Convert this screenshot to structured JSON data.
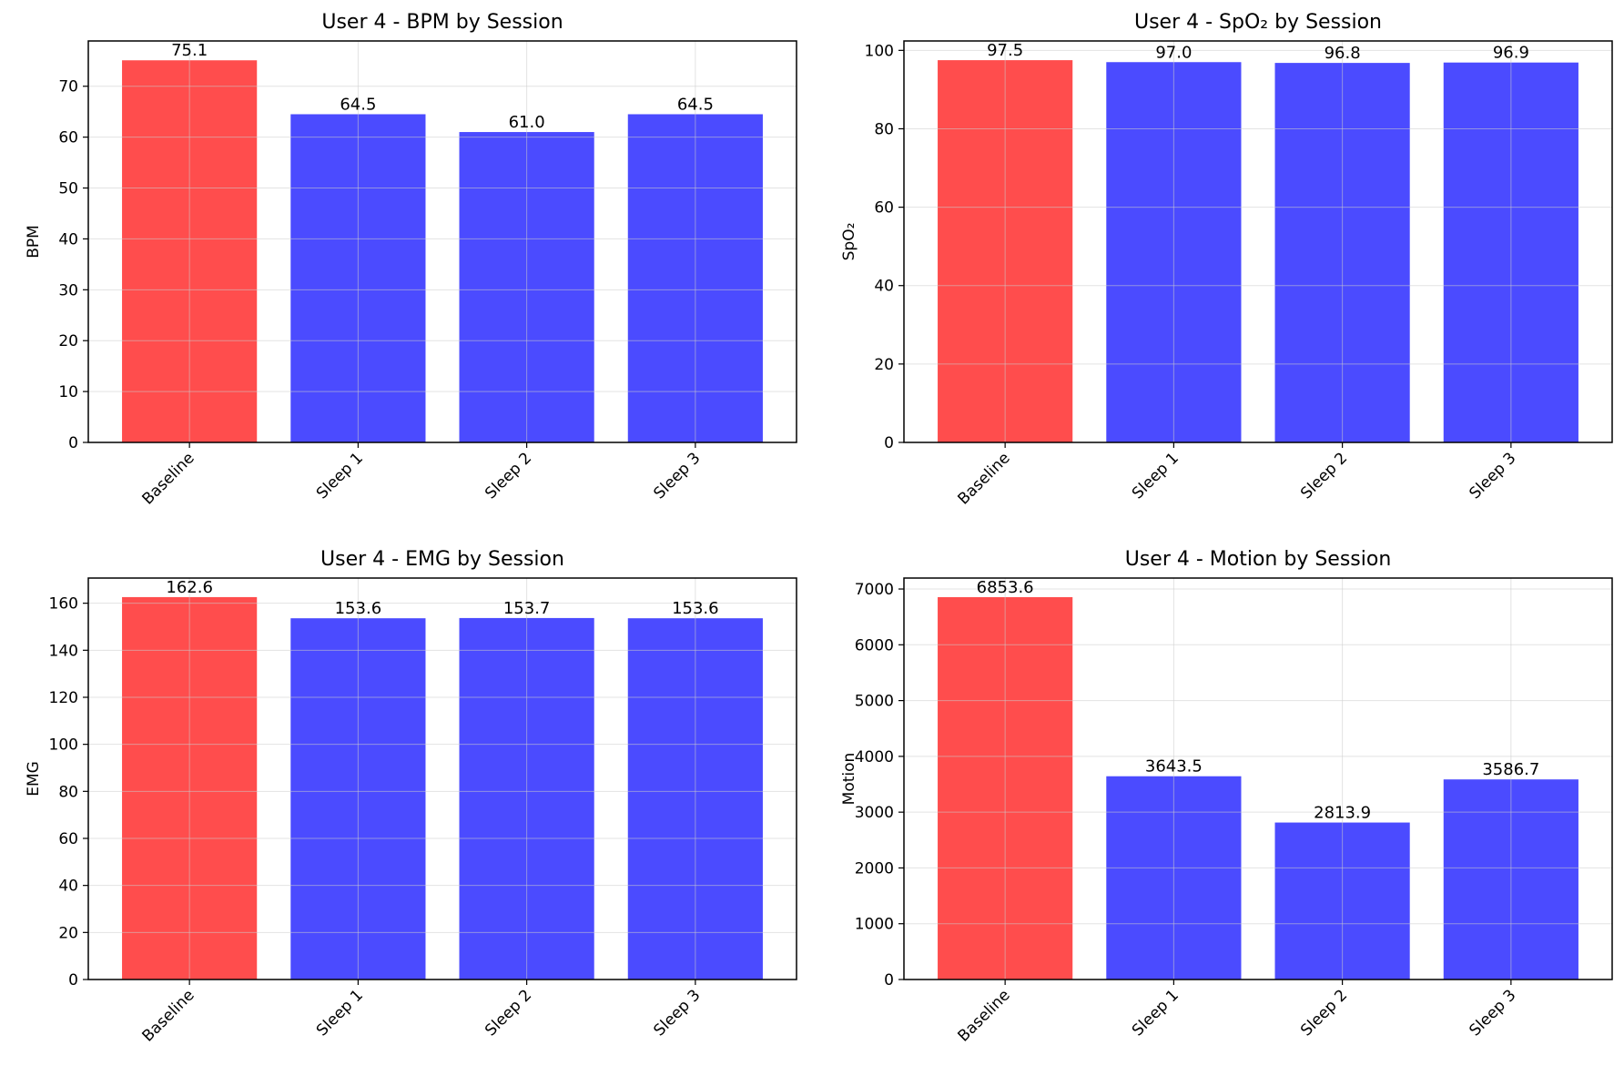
{
  "colors": {
    "baseline": "#ff4d4d",
    "session": "#4b4bff",
    "grid": "#e6e6e6",
    "axis": "#000000"
  },
  "chart_data": [
    {
      "type": "bar",
      "title": "User 4 - BPM by Session",
      "ylabel": "BPM",
      "xlabel": "",
      "categories": [
        "Baseline",
        "Sleep 1",
        "Sleep 2",
        "Sleep 3"
      ],
      "values": [
        75.1,
        64.5,
        61.0,
        64.5
      ],
      "value_labels": [
        "75.1",
        "64.5",
        "61.0",
        "64.5"
      ],
      "ylim": [
        0,
        78.9
      ],
      "yticks": [
        0,
        10,
        20,
        30,
        40,
        50,
        60,
        70
      ],
      "ytick_labels": [
        "0",
        "10",
        "20",
        "30",
        "40",
        "50",
        "60",
        "70"
      ],
      "bar_colors": [
        "baseline",
        "session",
        "session",
        "session"
      ],
      "grid": true
    },
    {
      "type": "bar",
      "title": "User 4 - SpO₂ by Session",
      "ylabel": "SpO₂",
      "xlabel": "",
      "categories": [
        "Baseline",
        "Sleep 1",
        "Sleep 2",
        "Sleep 3"
      ],
      "values": [
        97.5,
        97.0,
        96.8,
        96.9
      ],
      "value_labels": [
        "97.5",
        "97.0",
        "96.8",
        "96.9"
      ],
      "ylim": [
        0,
        102.4
      ],
      "yticks": [
        0,
        20,
        40,
        60,
        80,
        100
      ],
      "ytick_labels": [
        "0",
        "20",
        "40",
        "60",
        "80",
        "100"
      ],
      "bar_colors": [
        "baseline",
        "session",
        "session",
        "session"
      ],
      "grid": true
    },
    {
      "type": "bar",
      "title": "User 4 - EMG by Session",
      "ylabel": "EMG",
      "xlabel": "",
      "categories": [
        "Baseline",
        "Sleep 1",
        "Sleep 2",
        "Sleep 3"
      ],
      "values": [
        162.6,
        153.6,
        153.7,
        153.6
      ],
      "value_labels": [
        "162.6",
        "153.6",
        "153.7",
        "153.6"
      ],
      "ylim": [
        0,
        170.7
      ],
      "yticks": [
        0,
        20,
        40,
        60,
        80,
        100,
        120,
        140,
        160
      ],
      "ytick_labels": [
        "0",
        "20",
        "40",
        "60",
        "80",
        "100",
        "120",
        "140",
        "160"
      ],
      "bar_colors": [
        "baseline",
        "session",
        "session",
        "session"
      ],
      "grid": true
    },
    {
      "type": "bar",
      "title": "User 4 - Motion by Session",
      "ylabel": "Motion",
      "xlabel": "",
      "categories": [
        "Baseline",
        "Sleep 1",
        "Sleep 2",
        "Sleep 3"
      ],
      "values": [
        6853.6,
        3643.5,
        2813.9,
        3586.7
      ],
      "value_labels": [
        "6853.6",
        "3643.5",
        "2813.9",
        "3586.7"
      ],
      "ylim": [
        0,
        7196.3
      ],
      "yticks": [
        0,
        1000,
        2000,
        3000,
        4000,
        5000,
        6000,
        7000
      ],
      "ytick_labels": [
        "0",
        "1000",
        "2000",
        "3000",
        "4000",
        "5000",
        "6000",
        "7000"
      ],
      "bar_colors": [
        "baseline",
        "session",
        "session",
        "session"
      ],
      "grid": true
    }
  ]
}
